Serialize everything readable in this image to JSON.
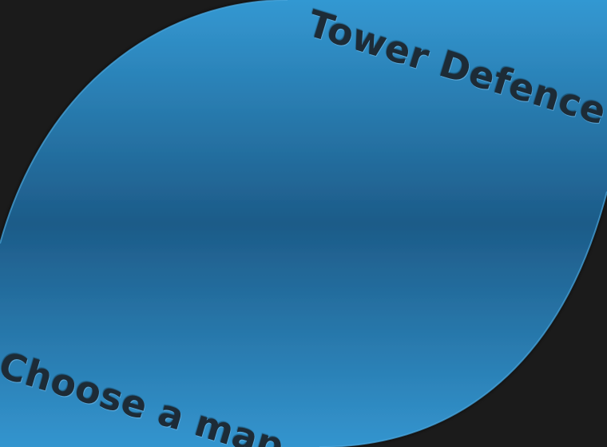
{
  "title": "Tower Defence",
  "menu": {
    "heading": "Choose a map"
  },
  "colors": {
    "background": "#1b1b1b",
    "panel_light": "#3398d2",
    "panel_dark": "#1d5b88",
    "panel_edge": "#4aa8df",
    "text": "#1d2b36"
  }
}
